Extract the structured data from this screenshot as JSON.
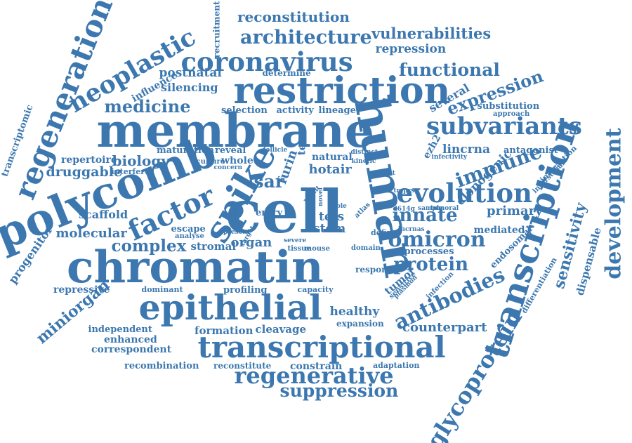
{
  "colors": {
    "text": "#3c78af",
    "background": "#ffffff"
  },
  "words": [
    "reconstitution",
    "recruitment",
    "architecture",
    "vulnerabilities",
    "regeneration",
    "neoplastic",
    "coronavirus",
    "repression",
    "functional",
    "postnatal",
    "determine",
    "influence",
    "restriction",
    "silencing",
    "several",
    "expression",
    "transcriptomic",
    "medicine",
    "selection",
    "activity",
    "lineage",
    "substitution",
    "approach",
    "membrane",
    "human",
    "subvariants",
    "development",
    "maturation",
    "reveal",
    "follicle",
    "repertoire",
    "biology",
    "druggable",
    "interfere",
    "culture",
    "whole",
    "concern",
    "natural",
    "distinct",
    "kinetic",
    "tec",
    "ezh2",
    "lincrna",
    "antagonist",
    "infectivity",
    "hotair",
    "polycomb",
    "spike",
    "furin",
    "sar",
    "immune",
    "clonogenic",
    "interaction",
    "evolution",
    "interstitial",
    "variant",
    "tmprss",
    "factor",
    "cell",
    "innate",
    "transcription",
    "sensitivity",
    "scaffold",
    "atlas",
    "role",
    "novel",
    "result",
    "entry",
    "d614g",
    "sample",
    "tumoral",
    "primary",
    "molecular",
    "progenitor",
    "escape",
    "analyse",
    "present",
    "target",
    "tets",
    "stem",
    "define",
    "lncrnas",
    "mediated",
    "dispensable",
    "complex",
    "organ",
    "stromal",
    "omicron",
    "chromatin",
    "severe",
    "tissue",
    "mouse",
    "domain",
    "processes",
    "endosomal",
    "protein",
    "response",
    "repressive",
    "miniorgan",
    "dominant",
    "profiling",
    "capacity",
    "sensitive",
    "plasmon",
    "infection",
    "tumor",
    "antibodies",
    "epithelial",
    "healthy",
    "expansion",
    "differentiation",
    "counterpart",
    "independent",
    "formation",
    "cleavage",
    "enhanced",
    "correspondent",
    "transcriptional",
    "glycoprotein",
    "regenerative",
    "recombination",
    "reconstitute",
    "constrain",
    "adaptation",
    "suppression"
  ]
}
